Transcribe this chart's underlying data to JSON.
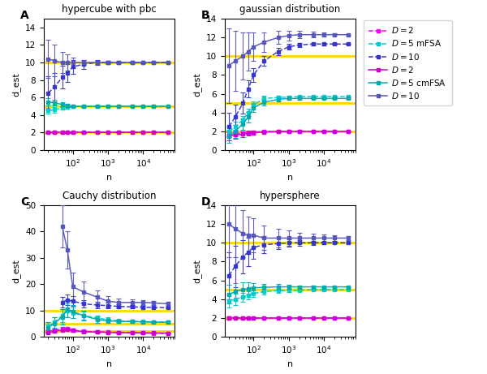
{
  "n_values": [
    20,
    30,
    50,
    70,
    100,
    200,
    500,
    1000,
    2000,
    5000,
    10000,
    20000,
    50000
  ],
  "hypercube_mFSA_D2_mean": [
    2.0,
    2.0,
    2.0,
    2.0,
    2.0,
    2.0,
    2.0,
    2.0,
    2.0,
    2.0,
    2.0,
    2.0,
    2.0
  ],
  "hypercube_mFSA_D2_err": [
    0.05,
    0.04,
    0.03,
    0.03,
    0.02,
    0.02,
    0.01,
    0.01,
    0.01,
    0.01,
    0.01,
    0.01,
    0.01
  ],
  "hypercube_mFSA_D5_mean": [
    4.5,
    4.6,
    4.8,
    4.9,
    5.0,
    5.0,
    5.0,
    5.0,
    5.0,
    5.0,
    5.0,
    5.0,
    5.0
  ],
  "hypercube_mFSA_D5_err": [
    0.35,
    0.3,
    0.2,
    0.15,
    0.1,
    0.07,
    0.05,
    0.04,
    0.03,
    0.02,
    0.02,
    0.01,
    0.01
  ],
  "hypercube_mFSA_D10_mean": [
    6.5,
    7.2,
    8.3,
    8.8,
    9.5,
    9.8,
    10.0,
    10.0,
    10.0,
    10.0,
    10.0,
    10.0,
    10.0
  ],
  "hypercube_mFSA_D10_err": [
    1.9,
    1.6,
    1.3,
    1.0,
    0.8,
    0.5,
    0.3,
    0.2,
    0.1,
    0.08,
    0.05,
    0.04,
    0.03
  ],
  "hypercube_cmFSA_D2_mean": [
    2.0,
    2.0,
    2.0,
    2.0,
    2.0,
    2.0,
    2.0,
    2.0,
    2.0,
    2.0,
    2.0,
    2.0,
    2.0
  ],
  "hypercube_cmFSA_D2_err": [
    0.06,
    0.05,
    0.04,
    0.03,
    0.03,
    0.02,
    0.01,
    0.01,
    0.01,
    0.01,
    0.01,
    0.01,
    0.01
  ],
  "hypercube_cmFSA_D5_mean": [
    5.5,
    5.4,
    5.2,
    5.1,
    5.0,
    5.0,
    5.0,
    5.0,
    5.0,
    5.0,
    5.0,
    5.0,
    5.0
  ],
  "hypercube_cmFSA_D5_err": [
    0.4,
    0.3,
    0.25,
    0.18,
    0.13,
    0.08,
    0.05,
    0.04,
    0.03,
    0.02,
    0.02,
    0.01,
    0.01
  ],
  "hypercube_cmFSA_D10_mean": [
    10.4,
    10.2,
    10.0,
    10.0,
    10.0,
    10.0,
    10.0,
    10.0,
    10.0,
    10.0,
    10.0,
    10.0,
    10.0
  ],
  "hypercube_cmFSA_D10_err": [
    2.2,
    1.8,
    1.2,
    0.9,
    0.6,
    0.3,
    0.2,
    0.12,
    0.08,
    0.06,
    0.05,
    0.04,
    0.03
  ],
  "gaussian_mFSA_D2_mean": [
    1.7,
    1.75,
    1.8,
    1.85,
    1.9,
    1.95,
    2.0,
    2.0,
    2.0,
    2.0,
    2.0,
    2.0,
    2.0
  ],
  "gaussian_mFSA_D2_err": [
    0.3,
    0.25,
    0.2,
    0.15,
    0.12,
    0.08,
    0.05,
    0.04,
    0.03,
    0.02,
    0.01,
    0.01,
    0.01
  ],
  "gaussian_mFSA_D5_mean": [
    2.0,
    2.5,
    3.2,
    4.0,
    4.8,
    5.5,
    5.6,
    5.65,
    5.7,
    5.7,
    5.7,
    5.7,
    5.7
  ],
  "gaussian_mFSA_D5_err": [
    0.5,
    0.5,
    0.45,
    0.4,
    0.35,
    0.25,
    0.18,
    0.12,
    0.08,
    0.06,
    0.05,
    0.04,
    0.03
  ],
  "gaussian_mFSA_D10_mean": [
    2.5,
    3.5,
    5.0,
    6.5,
    8.0,
    9.5,
    10.5,
    11.0,
    11.2,
    11.3,
    11.3,
    11.3,
    11.3
  ],
  "gaussian_mFSA_D10_err": [
    1.5,
    1.3,
    1.1,
    0.9,
    0.7,
    0.55,
    0.4,
    0.3,
    0.2,
    0.15,
    0.12,
    0.1,
    0.08
  ],
  "gaussian_cmFSA_D2_mean": [
    1.5,
    1.6,
    1.7,
    1.8,
    1.85,
    1.92,
    1.97,
    2.0,
    2.0,
    2.0,
    2.0,
    2.0,
    2.0
  ],
  "gaussian_cmFSA_D2_err": [
    0.5,
    0.4,
    0.3,
    0.25,
    0.18,
    0.12,
    0.08,
    0.06,
    0.04,
    0.03,
    0.02,
    0.02,
    0.01
  ],
  "gaussian_cmFSA_D5_mean": [
    1.5,
    2.0,
    2.8,
    3.5,
    4.5,
    5.1,
    5.4,
    5.5,
    5.5,
    5.5,
    5.5,
    5.5,
    5.5
  ],
  "gaussian_cmFSA_D5_err": [
    0.7,
    0.7,
    0.6,
    0.55,
    0.45,
    0.35,
    0.25,
    0.18,
    0.12,
    0.08,
    0.06,
    0.05,
    0.04
  ],
  "gaussian_cmFSA_D10_mean": [
    9.0,
    9.5,
    10.0,
    10.5,
    11.0,
    11.5,
    12.0,
    12.2,
    12.3,
    12.3,
    12.3,
    12.3,
    12.3
  ],
  "gaussian_cmFSA_D10_err": [
    4.0,
    3.2,
    2.5,
    2.0,
    1.5,
    1.0,
    0.7,
    0.5,
    0.4,
    0.3,
    0.2,
    0.15,
    0.1
  ],
  "cauchy_mFSA_D2_mean": [
    2.0,
    2.5,
    3.0,
    3.0,
    2.5,
    2.0,
    1.8,
    1.7,
    1.6,
    1.5,
    1.4,
    1.3,
    1.2
  ],
  "cauchy_mFSA_D2_err": [
    0.5,
    0.6,
    0.6,
    0.5,
    0.45,
    0.35,
    0.25,
    0.2,
    0.15,
    0.1,
    0.08,
    0.07,
    0.06
  ],
  "cauchy_mFSA_D5_mean": [
    4.0,
    5.5,
    8.0,
    10.0,
    9.0,
    8.0,
    7.0,
    6.5,
    6.0,
    5.8,
    5.7,
    5.6,
    5.5
  ],
  "cauchy_mFSA_D5_err": [
    1.5,
    2.0,
    2.5,
    2.5,
    2.0,
    1.5,
    1.0,
    0.8,
    0.6,
    0.4,
    0.3,
    0.25,
    0.2
  ],
  "cauchy_mFSA_D10_mean": [
    null,
    null,
    13.0,
    14.0,
    13.5,
    12.5,
    12.0,
    11.8,
    11.5,
    11.3,
    11.2,
    11.1,
    11.0
  ],
  "cauchy_mFSA_D10_err": [
    null,
    null,
    2.0,
    2.0,
    1.8,
    1.5,
    1.2,
    1.0,
    0.8,
    0.6,
    0.5,
    0.4,
    0.35
  ],
  "cauchy_cmFSA_D2_mean": [
    1.5,
    2.0,
    2.5,
    2.8,
    2.3,
    1.9,
    1.7,
    1.6,
    1.5,
    1.5,
    1.4,
    1.4,
    1.3
  ],
  "cauchy_cmFSA_D2_err": [
    0.4,
    0.5,
    0.5,
    0.5,
    0.45,
    0.35,
    0.25,
    0.2,
    0.15,
    0.12,
    0.1,
    0.08,
    0.07
  ],
  "cauchy_cmFSA_D5_mean": [
    3.5,
    5.0,
    7.5,
    10.5,
    9.5,
    8.0,
    6.5,
    6.0,
    5.8,
    5.7,
    5.6,
    5.5,
    5.5
  ],
  "cauchy_cmFSA_D5_err": [
    2.0,
    2.5,
    3.0,
    3.0,
    2.5,
    2.0,
    1.2,
    0.9,
    0.6,
    0.4,
    0.3,
    0.25,
    0.2
  ],
  "cauchy_cmFSA_D10_mean": [
    null,
    null,
    42.0,
    33.0,
    19.0,
    17.0,
    15.0,
    13.5,
    13.0,
    13.0,
    13.0,
    12.8,
    12.5
  ],
  "cauchy_cmFSA_D10_err": [
    null,
    null,
    8.0,
    7.0,
    5.5,
    4.0,
    2.5,
    2.0,
    1.5,
    1.2,
    1.0,
    0.8,
    0.6
  ],
  "hypersphere_mFSA_D2_mean": [
    2.0,
    2.0,
    2.0,
    2.0,
    2.0,
    2.0,
    2.0,
    2.0,
    2.0,
    2.0,
    2.0,
    2.0,
    2.0
  ],
  "hypersphere_mFSA_D2_err": [
    0.12,
    0.1,
    0.08,
    0.06,
    0.05,
    0.04,
    0.03,
    0.02,
    0.02,
    0.01,
    0.01,
    0.01,
    0.01
  ],
  "hypersphere_mFSA_D5_mean": [
    3.8,
    4.0,
    4.2,
    4.4,
    4.6,
    4.8,
    4.9,
    4.9,
    4.95,
    5.0,
    5.0,
    5.0,
    5.0
  ],
  "hypersphere_mFSA_D5_err": [
    0.7,
    0.6,
    0.5,
    0.4,
    0.35,
    0.28,
    0.2,
    0.15,
    0.1,
    0.07,
    0.05,
    0.04,
    0.03
  ],
  "hypersphere_mFSA_D10_mean": [
    6.5,
    7.5,
    8.5,
    9.0,
    9.5,
    9.8,
    9.9,
    10.0,
    10.0,
    10.0,
    10.0,
    10.0,
    10.0
  ],
  "hypersphere_mFSA_D10_err": [
    2.5,
    2.2,
    1.8,
    1.5,
    1.2,
    0.9,
    0.6,
    0.4,
    0.3,
    0.2,
    0.15,
    0.1,
    0.08
  ],
  "hypersphere_cmFSA_D2_mean": [
    2.0,
    2.0,
    2.0,
    2.0,
    2.0,
    2.0,
    2.0,
    2.0,
    2.0,
    2.0,
    2.0,
    2.0,
    2.0
  ],
  "hypersphere_cmFSA_D2_err": [
    0.15,
    0.12,
    0.1,
    0.08,
    0.06,
    0.05,
    0.04,
    0.03,
    0.02,
    0.02,
    0.01,
    0.01,
    0.01
  ],
  "hypersphere_cmFSA_D5_mean": [
    4.5,
    4.8,
    5.0,
    5.1,
    5.2,
    5.25,
    5.3,
    5.3,
    5.3,
    5.3,
    5.3,
    5.3,
    5.3
  ],
  "hypersphere_cmFSA_D5_err": [
    1.0,
    0.9,
    0.8,
    0.65,
    0.5,
    0.4,
    0.3,
    0.22,
    0.16,
    0.12,
    0.09,
    0.07,
    0.05
  ],
  "hypersphere_cmFSA_D10_mean": [
    12.0,
    11.5,
    11.0,
    10.8,
    10.8,
    10.5,
    10.5,
    10.5,
    10.5,
    10.5,
    10.5,
    10.5,
    10.5
  ],
  "hypersphere_cmFSA_D10_err": [
    3.5,
    3.0,
    2.5,
    2.0,
    1.8,
    1.3,
    1.0,
    0.8,
    0.6,
    0.5,
    0.4,
    0.3,
    0.25
  ],
  "color_mFSA_D2": "#ff00ff",
  "color_mFSA_D5": "#00cccc",
  "color_mFSA_D10": "#3333cc",
  "color_cmFSA_D2": "#cc00cc",
  "color_cmFSA_D5": "#00aaaa",
  "color_cmFSA_D10": "#5555bb",
  "color_ref": "#ffd700",
  "titles": [
    "hypercube with pbc",
    "gaussian distribution",
    "Cauchy distribution",
    "hypersphere"
  ],
  "panel_labels": [
    "A",
    "B",
    "C",
    "D"
  ],
  "xlabel": "n",
  "ylabel": "d_est"
}
